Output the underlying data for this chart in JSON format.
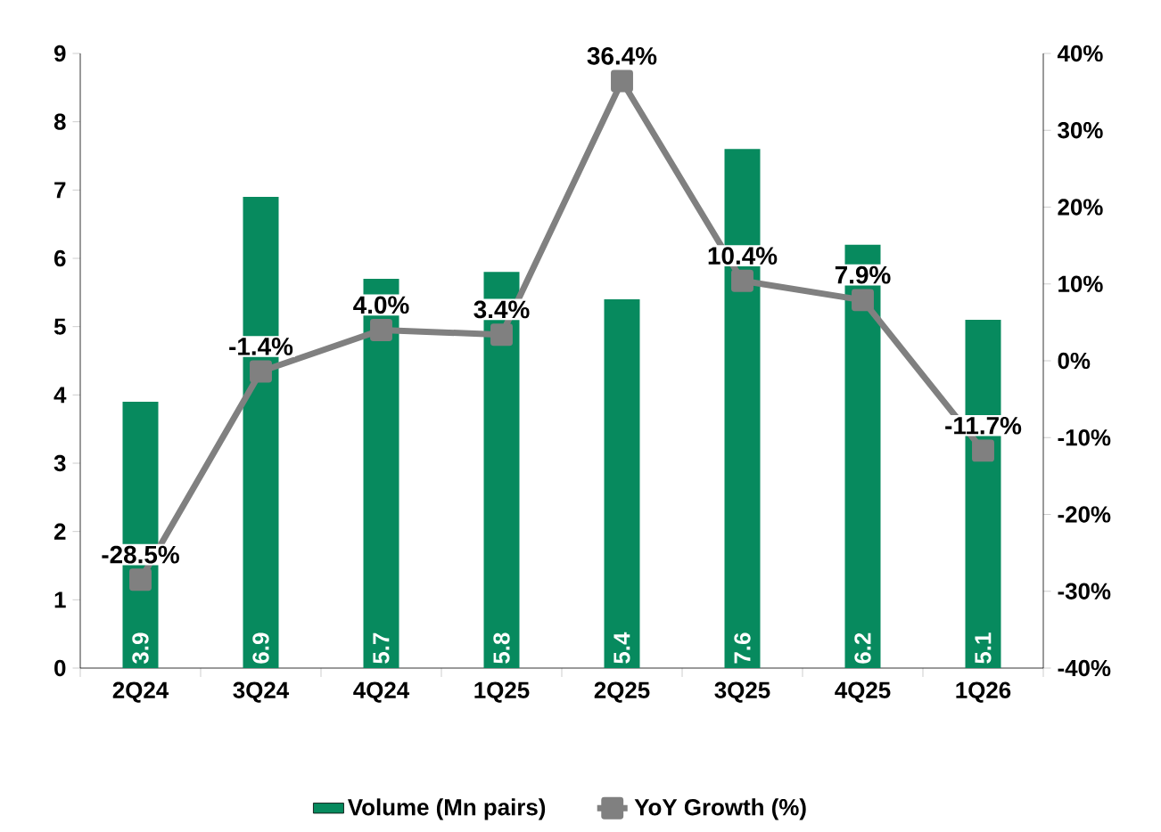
{
  "chart_data": {
    "type": "bar",
    "categories": [
      "2Q24",
      "3Q24",
      "4Q24",
      "1Q25",
      "2Q25",
      "3Q25",
      "4Q25",
      "1Q26"
    ],
    "series": [
      {
        "name": "Volume (Mn pairs)",
        "color": "#078a5e",
        "values": [
          3.9,
          6.9,
          5.7,
          5.8,
          5.4,
          7.6,
          6.2,
          5.1
        ],
        "value_labels": [
          "3.9",
          "6.9",
          "5.7",
          "5.8",
          "5.4",
          "7.6",
          "6.2",
          "5.1"
        ]
      },
      {
        "name": "YoY Growth (%)",
        "type": "line",
        "axis": "y2",
        "color": "#808080",
        "marker": "square",
        "values": [
          -28.5,
          -1.4,
          4.0,
          3.4,
          36.4,
          10.4,
          7.9,
          -11.7
        ],
        "value_labels": [
          "-28.5%",
          "-1.4%",
          "4.0%",
          "3.4%",
          "36.4%",
          "10.4%",
          "7.9%",
          "-11.7%"
        ]
      }
    ],
    "ylim": [
      0,
      9
    ],
    "yticks": [
      0,
      1,
      2,
      3,
      4,
      5,
      6,
      7,
      8,
      9
    ],
    "y2lim": [
      -40,
      40
    ],
    "y2ticks": [
      {
        "value": -40,
        "label": "-40%"
      },
      {
        "value": -30,
        "label": "-30%"
      },
      {
        "value": -20,
        "label": "-20%"
      },
      {
        "value": -10,
        "label": "-10%"
      },
      {
        "value": 0,
        "label": "0%"
      },
      {
        "value": 10,
        "label": "10%"
      },
      {
        "value": 20,
        "label": "20%"
      },
      {
        "value": 30,
        "label": "30%"
      },
      {
        "value": 40,
        "label": "40%"
      }
    ],
    "grid": false,
    "legend": "bottom"
  }
}
